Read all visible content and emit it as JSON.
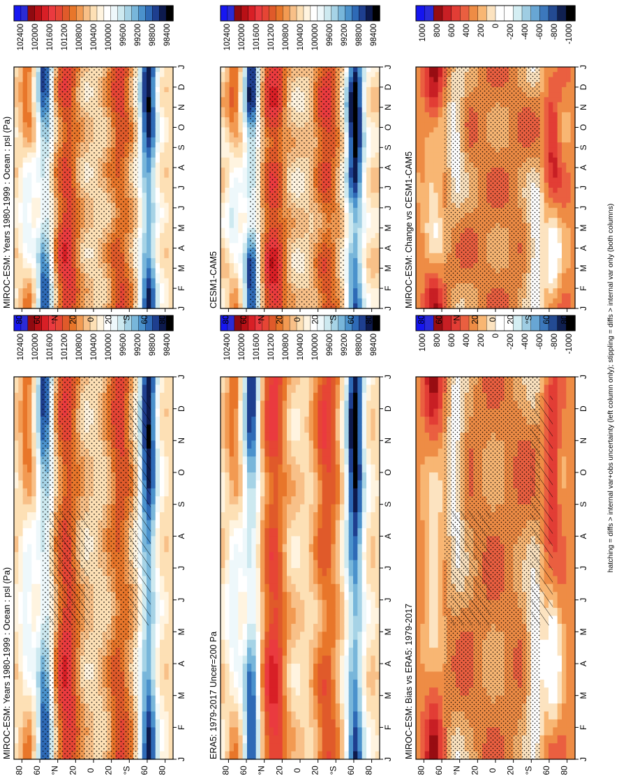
{
  "footnote": "hatching = diffs > internal var+obs uncertainty (left column only); stippling = diffs > internal var only (both columns)",
  "colors": {
    "abs": [
      "#000000",
      "#0d1a4d",
      "#1e3f8f",
      "#2e6ab6",
      "#4b92cc",
      "#78b6da",
      "#a6d3e6",
      "#cde9f0",
      "#eef8fb",
      "#ffffff",
      "#fff4e0",
      "#fde0b5",
      "#f8c088",
      "#f29a52",
      "#e8762a",
      "#e05a2a",
      "#e64535",
      "#ea3a3f",
      "#d81f26",
      "#b81016",
      "#8f0a10",
      "#2b2bd6",
      "#1717f2"
    ],
    "diff": [
      "#000000",
      "#102050",
      "#234a92",
      "#3c78bc",
      "#68a6d4",
      "#9fcde3",
      "#d4eef3",
      "#ffffff",
      "#ffffff",
      "#fce3c0",
      "#f8b673",
      "#ee8c45",
      "#ea5f40",
      "#e23d35",
      "#c81f24",
      "#980d12",
      "#2a2ad8",
      "#1515f0"
    ]
  },
  "panels": [
    {
      "id": "p1",
      "title": "MIROC-ESM: Years 1980-1999 : Ocean : psl (Pa)",
      "scale": "abs",
      "hatched": true,
      "stipple": "moderate",
      "colorbar_ticks": [
        "102400",
        "102000",
        "101600",
        "101200",
        "100800",
        "100400",
        "100000",
        "99600",
        "99200",
        "98800",
        "98400"
      ]
    },
    {
      "id": "p2",
      "title": "MIROC-ESM: Years 1980-1999 : Ocean : psl (Pa)",
      "scale": "abs",
      "hatched": false,
      "stipple": "moderate",
      "colorbar_ticks": [
        "102400",
        "102000",
        "101600",
        "101200",
        "100800",
        "100400",
        "100000",
        "99600",
        "99200",
        "98800",
        "98400"
      ]
    },
    {
      "id": "p3",
      "title": "ERA5: 1979-2017 Uncer=200 Pa",
      "scale": "abs",
      "hatched": false,
      "stipple": "none",
      "colorbar_ticks": [
        "102400",
        "102000",
        "101600",
        "101200",
        "100800",
        "100400",
        "100000",
        "99600",
        "99200",
        "98800",
        "98400"
      ]
    },
    {
      "id": "p4",
      "title": "CESM1-CAM5",
      "scale": "abs",
      "hatched": false,
      "stipple": "moderate",
      "colorbar_ticks": [
        "102400",
        "102000",
        "101600",
        "101200",
        "100800",
        "100400",
        "100000",
        "99600",
        "99200",
        "98800",
        "98400"
      ]
    },
    {
      "id": "p5",
      "title": "MIROC-ESM: Bias vs ERA5: 1979-2017",
      "scale": "diff",
      "hatched": true,
      "stipple": "dense",
      "colorbar_ticks": [
        "1000",
        "800",
        "600",
        "400",
        "200",
        "0",
        "-200",
        "-400",
        "-600",
        "-800",
        "-1000"
      ]
    },
    {
      "id": "p6",
      "title": "MIROC-ESM: Change vs CESM1-CAM5",
      "scale": "diff",
      "hatched": false,
      "stipple": "dense",
      "colorbar_ticks": [
        "1000",
        "800",
        "600",
        "400",
        "200",
        "0",
        "-200",
        "-400",
        "-600",
        "-800",
        "-1000"
      ]
    }
  ],
  "chart_data": {
    "type": "heatmap",
    "x": [
      "J",
      "F",
      "M",
      "A",
      "M",
      "J",
      "J",
      "A",
      "S",
      "O",
      "N",
      "D",
      "J"
    ],
    "y_ticks": [
      "80",
      "60",
      "°N",
      "20",
      "0",
      "20",
      "°S",
      "60",
      "80"
    ],
    "y_range": [
      -90,
      90
    ],
    "fields": {
      "p1": {
        "base": 101200,
        "amp": 1,
        "seed": 1
      },
      "p2": {
        "base": 101200,
        "amp": 1,
        "seed": 1
      },
      "p3": {
        "base": 101200,
        "amp": 1.05,
        "seed": 2
      },
      "p4": {
        "base": 101200,
        "amp": 1.1,
        "seed": 3
      },
      "p5": {
        "base": 350,
        "seed": 4
      },
      "p6": {
        "base": 250,
        "seed": 5
      }
    }
  }
}
